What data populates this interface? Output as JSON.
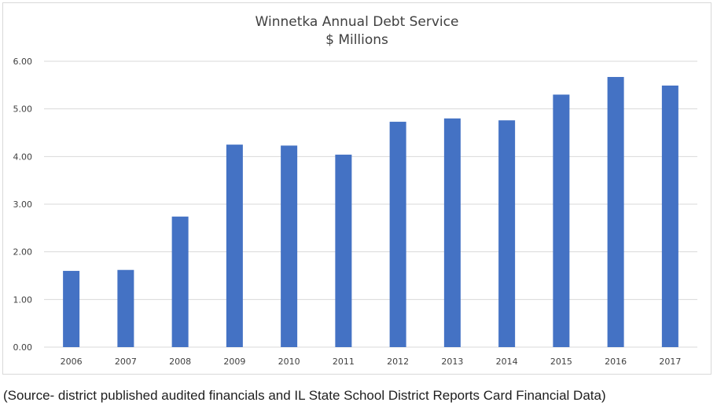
{
  "chart_data": {
    "type": "bar",
    "title": "Winnetka Annual Debt Service",
    "subtitle": "$ Millions",
    "categories": [
      "2006",
      "2007",
      "2008",
      "2009",
      "2010",
      "2011",
      "2012",
      "2013",
      "2014",
      "2015",
      "2016",
      "2017"
    ],
    "values": [
      1.6,
      1.62,
      2.74,
      4.25,
      4.23,
      4.04,
      4.73,
      4.8,
      4.76,
      5.3,
      5.67,
      5.49
    ],
    "ylim": [
      0,
      6
    ],
    "yticks": [
      "0.00",
      "1.00",
      "2.00",
      "3.00",
      "4.00",
      "5.00",
      "6.00"
    ],
    "xlabel": "",
    "ylabel": "",
    "grid": true,
    "bar_color": "#4472c4",
    "grid_color": "#d9d9d9"
  },
  "caption": "(Source- district published audited financials and IL State School District Reports Card Financial Data)"
}
